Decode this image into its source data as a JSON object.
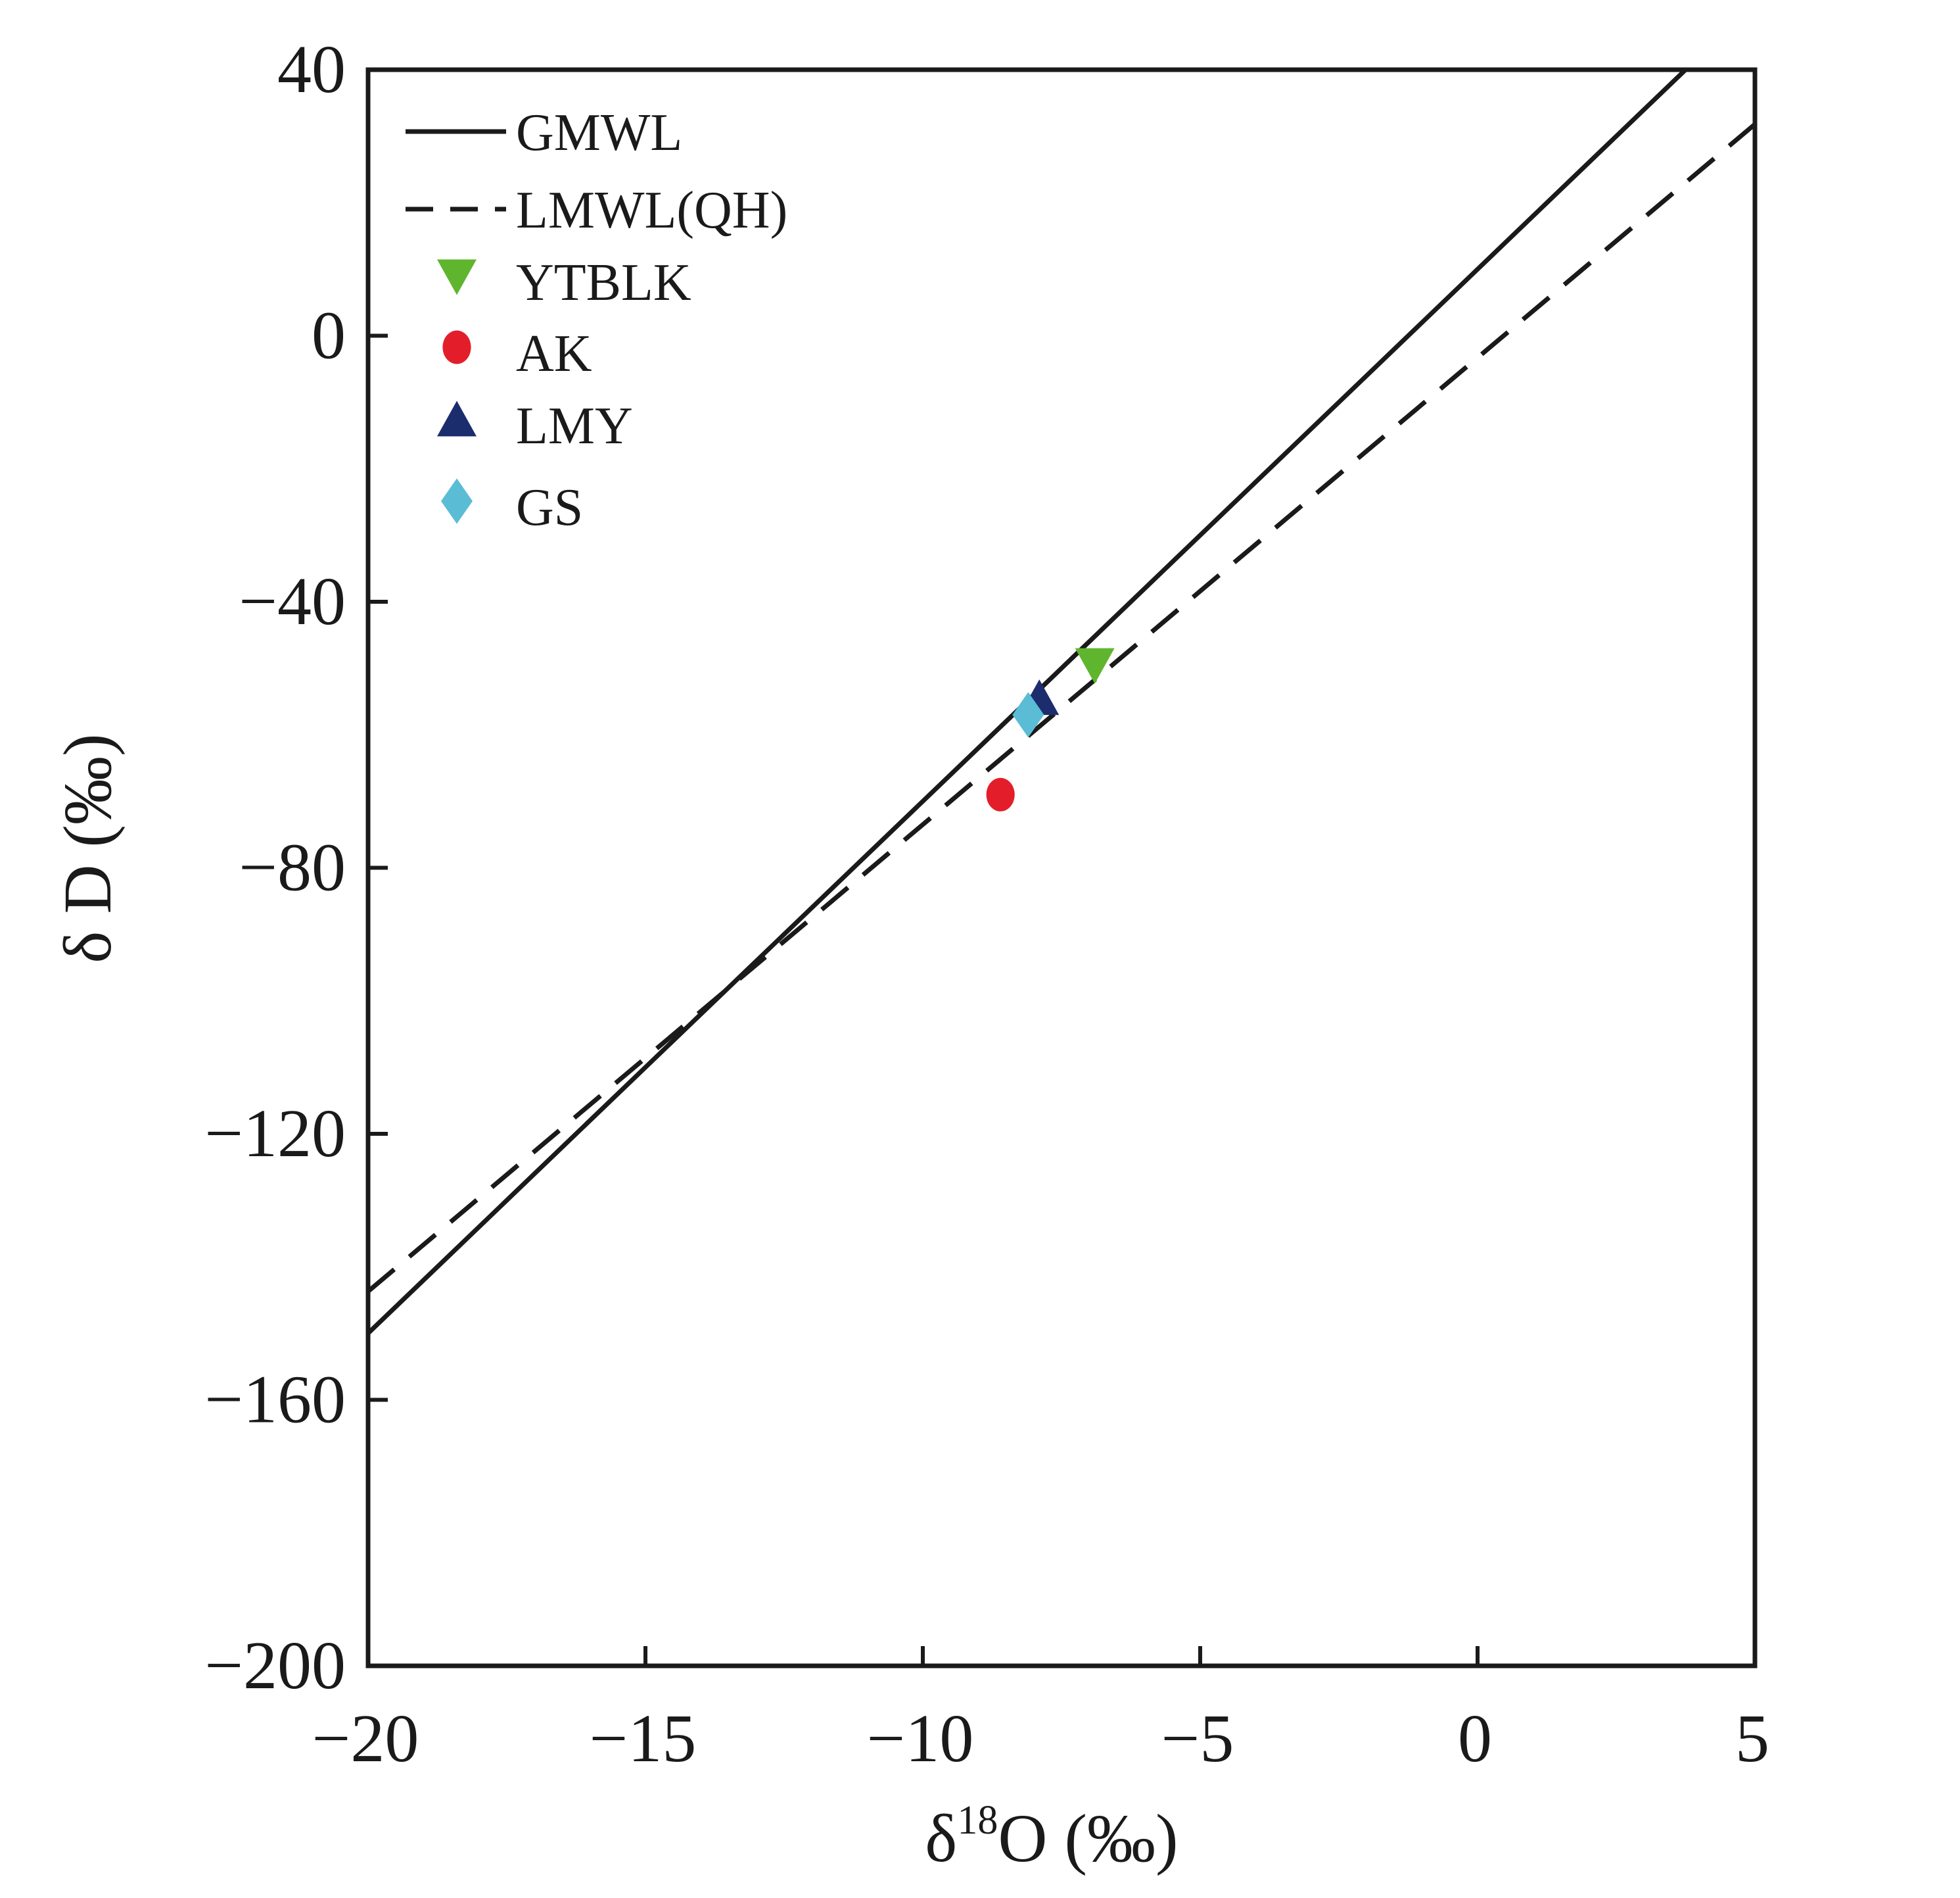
{
  "chart_data": {
    "type": "scatter",
    "title": "",
    "xlabel": {
      "prefix": "δ",
      "superscript": "18",
      "suffix": "O (‰)"
    },
    "ylabel": "δ D (‰)",
    "xlim": [
      -20,
      5
    ],
    "ylim": [
      -200,
      40
    ],
    "xticks": [
      -20,
      -15,
      -10,
      -5,
      0,
      5
    ],
    "yticks": [
      -200,
      -160,
      -120,
      -80,
      -40,
      0,
      40
    ],
    "xtick_labels": [
      "−20",
      "−15",
      "−10",
      "−5",
      "0",
      "5"
    ],
    "ytick_labels": [
      "−200",
      "−160",
      "−120",
      "−80",
      "−40",
      "0",
      "40"
    ],
    "grid": false,
    "legend_position": "top-left",
    "lines": [
      {
        "name": "GMWL",
        "style": "solid",
        "slope": 8,
        "intercept": 10,
        "color": "#1a1a1a"
      },
      {
        "name": "LMWL(QH)",
        "style": "dashed",
        "slope": 7.02,
        "intercept": -3.3,
        "color": "#1a1a1a"
      }
    ],
    "series": [
      {
        "name": "YTBLK",
        "marker": "triangle-down",
        "color": "#5fb52e",
        "x": -6.9,
        "y": -49.5
      },
      {
        "name": "AK",
        "marker": "circle",
        "color": "#e31e2a",
        "x": -8.6,
        "y": -69
      },
      {
        "name": "LMY",
        "marker": "triangle-up",
        "color": "#1c2d6e",
        "x": -7.9,
        "y": -54.5
      },
      {
        "name": "GS",
        "marker": "diamond",
        "color": "#5bbcd6",
        "x": -8.1,
        "y": -57
      }
    ]
  }
}
